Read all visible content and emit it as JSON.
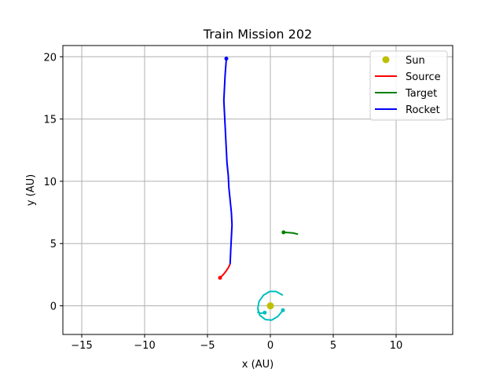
{
  "chart_data": {
    "type": "line",
    "title": "Train Mission 202",
    "xlabel": "x (AU)",
    "ylabel": "y (AU)",
    "xlim": [
      -16.5,
      14.5
    ],
    "ylim": [
      -2.3,
      20.9
    ],
    "xticks": [
      -15,
      -10,
      -5,
      0,
      5,
      10
    ],
    "yticks": [
      0,
      5,
      10,
      15,
      20
    ],
    "grid": true,
    "legend_position": "top-right",
    "colors": {
      "sun": "#bfbf00",
      "source": "#ff0000",
      "target": "#008000",
      "rocket": "#0000ff",
      "inner_orbit": "#00bfbf"
    },
    "sun": {
      "name": "Sun",
      "x": 0,
      "y": 0
    },
    "series": [
      {
        "name": "Source",
        "x": [
          -3.2,
          -3.35,
          -3.55,
          -3.75,
          -4.0
        ],
        "y": [
          3.35,
          3.05,
          2.75,
          2.5,
          2.25
        ]
      },
      {
        "name": "Target",
        "x": [
          2.2,
          1.8,
          1.4,
          1.05
        ],
        "y": [
          5.75,
          5.85,
          5.88,
          5.9
        ]
      },
      {
        "name": "Rocket",
        "x": [
          -3.2,
          -3.15,
          -3.1,
          -3.05,
          -3.1,
          -3.2,
          -3.3,
          -3.35,
          -3.45,
          -3.5,
          -3.55,
          -3.6,
          -3.65,
          -3.7,
          -3.6,
          -3.5
        ],
        "y": [
          3.35,
          4.5,
          5.5,
          6.5,
          7.5,
          8.5,
          9.5,
          10.5,
          11.5,
          12.5,
          13.5,
          14.5,
          15.5,
          16.5,
          18.5,
          19.85
        ]
      }
    ],
    "inner_orbits": [
      {
        "x": [
          1.0,
          0.45,
          -0.05,
          -0.55,
          -0.9,
          -1.0,
          -0.85,
          -0.4,
          0.1,
          0.6,
          1.0
        ],
        "y": [
          0.85,
          1.15,
          1.15,
          0.85,
          0.35,
          -0.2,
          -0.75,
          -1.1,
          -1.15,
          -0.85,
          -0.35
        ]
      },
      {
        "x": [
          -0.45,
          -0.75,
          -1.05
        ],
        "y": [
          -0.55,
          -0.6,
          -0.5
        ]
      }
    ]
  }
}
